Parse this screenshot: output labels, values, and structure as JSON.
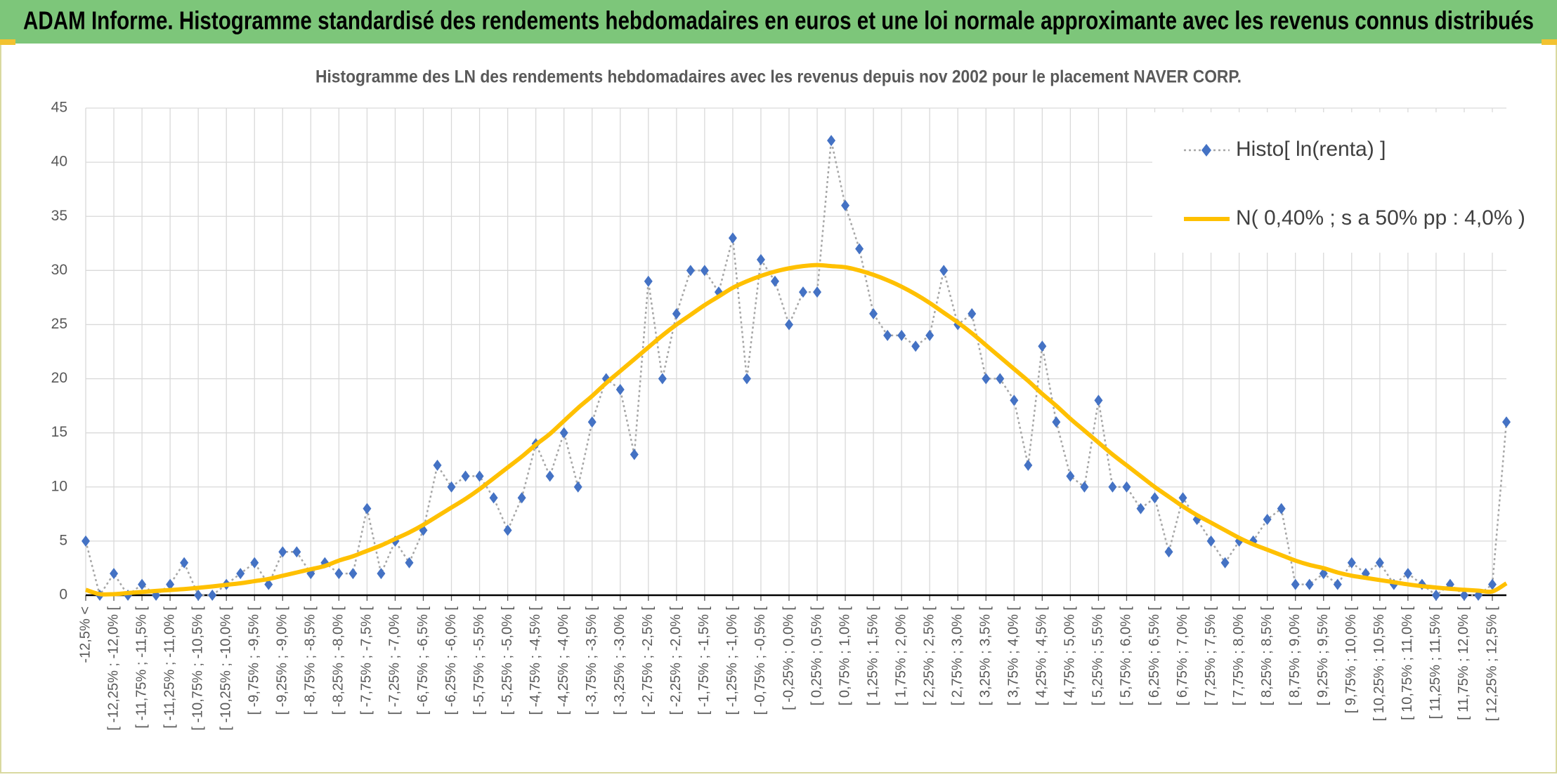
{
  "chart_data": {
    "type": "line",
    "header": "ADAM Informe. Histogramme standardisé des rendements hebdomadaires en euros et une loi normale approximante avec les revenus connus distribués",
    "title": "Histogramme des LN des rendements hebdomadaires avec les revenus depuis nov 2002 pour le placement NAVER CORP.",
    "categories": [
      "-12,5% <",
      null,
      "[ -12,25% ; -12,0% [",
      null,
      "[ -11,75% ; -11,5% [",
      null,
      "[ -11,25% ; -11,0% [",
      null,
      "[ -10,75% ; -10,5% [",
      null,
      "[ -10,25% ; -10,0% [",
      null,
      "[ -9,75% ; -9,5% [",
      null,
      "[ -9,25% ; -9,0% [",
      null,
      "[ -8,75% ; -8,5% [",
      null,
      "[ -8,25% ; -8,0% [",
      null,
      "[ -7,75% ; -7,5% [",
      null,
      "[ -7,25% ; -7,0% [",
      null,
      "[ -6,75% ; -6,5% [",
      null,
      "[ -6,25% ; -6,0% [",
      null,
      "[ -5,75% ; -5,5% [",
      null,
      "[ -5,25% ; -5,0% [",
      null,
      "[ -4,75% ; -4,5% [",
      null,
      "[ -4,25% ; -4,0% [",
      null,
      "[ -3,75% ; -3,5% [",
      null,
      "[ -3,25% ; -3,0% [",
      null,
      "[ -2,75% ; -2,5% [",
      null,
      "[ -2,25% ; -2,0% [",
      null,
      "[ -1,75% ; -1,5% [",
      null,
      "[ -1,25% ; -1,0% [",
      null,
      "[ -0,75% ; -0,5% [",
      null,
      "[ -0,25% ; 0,0% [",
      null,
      "[ 0,25% ; 0,5% [",
      null,
      "[ 0,75% ; 1,0% [",
      null,
      "[ 1,25% ; 1,5% [",
      null,
      "[ 1,75% ; 2,0% [",
      null,
      "[ 2,25% ; 2,5% [",
      null,
      "[ 2,75% ; 3,0% [",
      null,
      "[ 3,25% ; 3,5% [",
      null,
      "[ 3,75% ; 4,0% [",
      null,
      "[ 4,25% ; 4,5% [",
      null,
      "[ 4,75% ; 5,0% [",
      null,
      "[ 5,25% ; 5,5% [",
      null,
      "[ 5,75% ; 6,0% [",
      null,
      "[ 6,25% ; 6,5% [",
      null,
      "[ 6,75% ; 7,0% [",
      null,
      "[ 7,25% ; 7,5% [",
      null,
      "[ 7,75% ; 8,0% [",
      null,
      "[ 8,25% ; 8,5% [",
      null,
      "[ 8,75% ; 9,0% [",
      null,
      "[ 9,25% ; 9,5% [",
      null,
      "[ 9,75% ; 10,0% [",
      null,
      "[ 10,25% ; 10,5% [",
      null,
      "[ 10,75% ; 11,0% [",
      null,
      "[ 11,25% ; 11,5% [",
      null,
      "[ 11,75% ; 12,0% [",
      null,
      "[ 12,25% ; 12,5% [",
      null
    ],
    "series": [
      {
        "name": "Histo[ ln(renta) ]",
        "color": "#4472c4",
        "line_color": "#a6a6a6",
        "style": "dotted-markers",
        "values": [
          5,
          0,
          2,
          0,
          1,
          0,
          1,
          3,
          0,
          0,
          1,
          2,
          3,
          1,
          4,
          4,
          2,
          3,
          2,
          2,
          8,
          2,
          5,
          3,
          6,
          12,
          10,
          11,
          11,
          9,
          6,
          9,
          14,
          11,
          15,
          10,
          16,
          20,
          19,
          13,
          29,
          20,
          26,
          30,
          30,
          28,
          33,
          20,
          31,
          29,
          25,
          28,
          28,
          42,
          36,
          32,
          26,
          24,
          24,
          23,
          24,
          30,
          25,
          26,
          20,
          20,
          18,
          12,
          23,
          16,
          11,
          10,
          18,
          10,
          10,
          8,
          9,
          4,
          9,
          7,
          5,
          3,
          5,
          5,
          7,
          8,
          1,
          1,
          2,
          1,
          3,
          2,
          3,
          1,
          2,
          1,
          0,
          1,
          0,
          0,
          1,
          16
        ]
      },
      {
        "name": "N( 0,40% ; s a 50% pp : 4,0% )",
        "color": "#ffc000",
        "style": "smooth",
        "values": [
          0.5,
          0.1,
          0.1,
          0.2,
          0.3,
          0.4,
          0.48,
          0.57,
          0.68,
          0.81,
          0.96,
          1.1,
          1.3,
          1.5,
          1.8,
          2.1,
          2.4,
          2.7,
          3.2,
          3.6,
          4.1,
          4.6,
          5.2,
          5.8,
          6.5,
          7.3,
          8.1,
          8.9,
          9.8,
          10.8,
          11.8,
          12.8,
          13.9,
          14.9,
          16.1,
          17.3,
          18.4,
          19.6,
          20.7,
          21.8,
          22.9,
          24.0,
          25.0,
          25.9,
          26.8,
          27.6,
          28.4,
          29.0,
          29.5,
          29.9,
          30.2,
          30.4,
          30.5,
          30.4,
          30.3,
          30.0,
          29.6,
          29.1,
          28.5,
          27.8,
          27.0,
          26.1,
          25.2,
          24.2,
          23.1,
          22.0,
          20.9,
          19.8,
          18.6,
          17.5,
          16.3,
          15.2,
          14.1,
          13.0,
          12.0,
          11.0,
          10.0,
          9.1,
          8.2,
          7.4,
          6.7,
          6.0,
          5.3,
          4.7,
          4.2,
          3.7,
          3.2,
          2.8,
          2.5,
          2.1,
          1.8,
          1.6,
          1.4,
          1.2,
          1.0,
          0.84,
          0.71,
          0.59,
          0.5,
          0.42,
          0.35,
          1.1
        ]
      }
    ],
    "ylim": [
      0,
      45
    ],
    "yticks": [
      0,
      5,
      10,
      15,
      20,
      25,
      30,
      35,
      40,
      45
    ],
    "grid": true,
    "legend": "top-right"
  }
}
